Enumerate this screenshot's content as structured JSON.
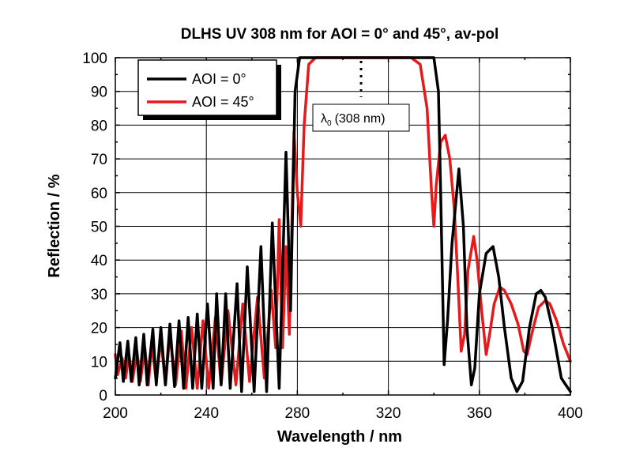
{
  "chart_data": {
    "type": "line",
    "title": "DLHS UV 308 nm for AOI = 0° and 45°, av-pol",
    "xlabel": "Wavelength / nm",
    "ylabel": "Reflection / %",
    "xlim": [
      200,
      400
    ],
    "ylim": [
      0,
      100
    ],
    "xticks": [
      200,
      240,
      280,
      320,
      360,
      400
    ],
    "yticks": [
      0,
      10,
      20,
      30,
      40,
      50,
      60,
      70,
      80,
      90,
      100
    ],
    "grid": true,
    "legend_position": "top-left",
    "annotation": {
      "text": "(308 nm)",
      "symbol": "λ",
      "subscript": "0",
      "x": 308
    },
    "series": [
      {
        "name": "AOI = 0°",
        "color": "#000000",
        "points": [
          [
            200,
            5
          ],
          [
            202,
            15.5
          ],
          [
            203.5,
            4
          ],
          [
            205.5,
            16
          ],
          [
            207,
            4
          ],
          [
            209,
            17
          ],
          [
            210.5,
            3
          ],
          [
            212.5,
            18
          ],
          [
            214,
            3
          ],
          [
            216.5,
            19.5
          ],
          [
            218,
            3
          ],
          [
            220,
            20
          ],
          [
            222,
            3
          ],
          [
            224,
            21
          ],
          [
            226,
            2.5
          ],
          [
            228,
            22
          ],
          [
            230,
            2
          ],
          [
            232,
            23
          ],
          [
            234,
            2
          ],
          [
            236,
            24
          ],
          [
            238,
            2
          ],
          [
            240.5,
            27
          ],
          [
            243,
            2
          ],
          [
            244.5,
            30
          ],
          [
            246.5,
            3
          ],
          [
            248.5,
            30
          ],
          [
            250.5,
            2
          ],
          [
            253.5,
            33
          ],
          [
            255.5,
            1
          ],
          [
            258,
            38
          ],
          [
            261,
            1
          ],
          [
            264,
            44
          ],
          [
            266.5,
            1
          ],
          [
            269,
            51
          ],
          [
            272,
            2
          ],
          [
            275,
            72
          ],
          [
            277,
            25
          ],
          [
            279,
            90
          ],
          [
            281,
            100
          ],
          [
            300,
            100
          ],
          [
            340,
            100
          ],
          [
            342,
            90
          ],
          [
            343,
            60
          ],
          [
            344.5,
            9
          ],
          [
            346,
            22
          ],
          [
            348,
            45
          ],
          [
            351,
            67
          ],
          [
            353,
            50
          ],
          [
            354.5,
            20
          ],
          [
            356.5,
            3
          ],
          [
            358,
            8
          ],
          [
            360,
            30
          ],
          [
            363,
            42
          ],
          [
            366,
            44
          ],
          [
            368.5,
            35
          ],
          [
            371,
            20
          ],
          [
            374,
            5
          ],
          [
            376.5,
            1
          ],
          [
            379,
            4
          ],
          [
            382,
            20
          ],
          [
            385,
            30
          ],
          [
            387,
            31
          ],
          [
            389,
            29
          ],
          [
            392,
            20
          ],
          [
            396,
            5
          ],
          [
            398,
            3
          ],
          [
            400,
            1
          ]
        ]
      },
      {
        "name": "AOI = 45°",
        "color": "#e41a1c",
        "points": [
          [
            200,
            12
          ],
          [
            201,
            6
          ],
          [
            203,
            11
          ],
          [
            204.5,
            5
          ],
          [
            206,
            12
          ],
          [
            207.5,
            4
          ],
          [
            209.5,
            13
          ],
          [
            211,
            4
          ],
          [
            213,
            14
          ],
          [
            214.5,
            3
          ],
          [
            216,
            15
          ],
          [
            218,
            4
          ],
          [
            220,
            17
          ],
          [
            222,
            3
          ],
          [
            224,
            18
          ],
          [
            226.5,
            3
          ],
          [
            229,
            19
          ],
          [
            231,
            2
          ],
          [
            233.5,
            20
          ],
          [
            236,
            2
          ],
          [
            238.5,
            22
          ],
          [
            241,
            2
          ],
          [
            244,
            23
          ],
          [
            246.5,
            3
          ],
          [
            249.5,
            25
          ],
          [
            253,
            3
          ],
          [
            256,
            27
          ],
          [
            259,
            4
          ],
          [
            262.5,
            29
          ],
          [
            265.5,
            5
          ],
          [
            268.5,
            31
          ],
          [
            270.5,
            14
          ],
          [
            272,
            52
          ],
          [
            273.5,
            14
          ],
          [
            275,
            44
          ],
          [
            276.5,
            18
          ],
          [
            278.5,
            78
          ],
          [
            280,
            60
          ],
          [
            281.5,
            50
          ],
          [
            283,
            80
          ],
          [
            285,
            98
          ],
          [
            288,
            100
          ],
          [
            330,
            100
          ],
          [
            334,
            98
          ],
          [
            337,
            85
          ],
          [
            339,
            60
          ],
          [
            340,
            50
          ],
          [
            341,
            62
          ],
          [
            343,
            75
          ],
          [
            345,
            77
          ],
          [
            347,
            70
          ],
          [
            349,
            55
          ],
          [
            350.5,
            35
          ],
          [
            352,
            13
          ],
          [
            353.5,
            18
          ],
          [
            355,
            37
          ],
          [
            357.5,
            47
          ],
          [
            359,
            40
          ],
          [
            361,
            25
          ],
          [
            363,
            12
          ],
          [
            364.5,
            18
          ],
          [
            366.5,
            27
          ],
          [
            369,
            32
          ],
          [
            371,
            31
          ],
          [
            374,
            27
          ],
          [
            377,
            21
          ],
          [
            379.5,
            13
          ],
          [
            381,
            12
          ],
          [
            383,
            18
          ],
          [
            386,
            26
          ],
          [
            389,
            28
          ],
          [
            391,
            27
          ],
          [
            394,
            22
          ],
          [
            397,
            15
          ],
          [
            400,
            10
          ]
        ]
      }
    ]
  }
}
